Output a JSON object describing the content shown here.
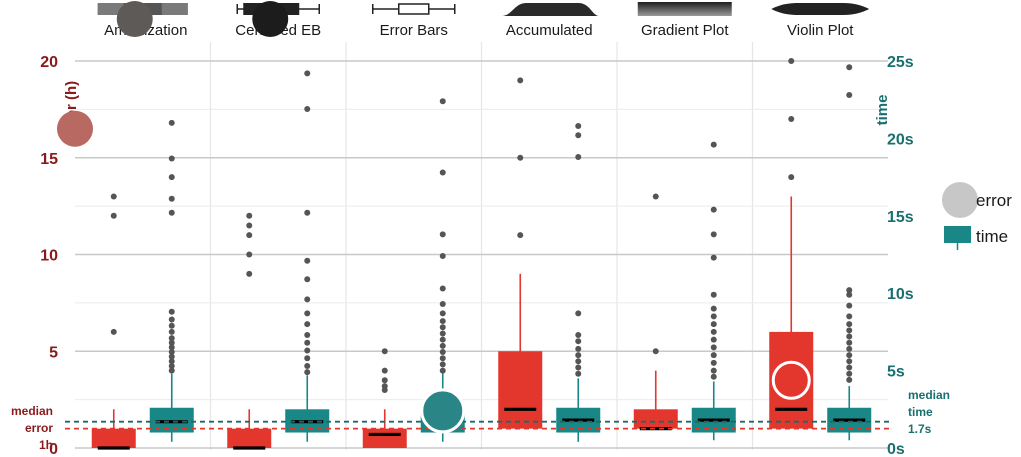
{
  "chart_data": {
    "type": "box",
    "categories": [
      "Amortization",
      "Centered EB",
      "Error Bars",
      "Accumulated",
      "Gradient Plot",
      "Violin Plot"
    ],
    "left_axis": {
      "label": "error (h)",
      "range": [
        0,
        20
      ],
      "ticks": [
        "0",
        "5",
        "10",
        "15",
        "20"
      ]
    },
    "right_axis": {
      "label": "time",
      "range": [
        0,
        25
      ],
      "ticks": [
        "0s",
        "5s",
        "10s",
        "15s",
        "20s",
        "25s"
      ]
    },
    "legend": {
      "position": "right",
      "items": [
        "error",
        "time"
      ]
    },
    "colors": {
      "error": "#e3362c",
      "time": "#1a8787",
      "left_axis": "#8b1a1a",
      "right_axis": "#1a7070",
      "grid": "#c8c8c8"
    },
    "reference_lines": [
      {
        "label_lines": [
          "median",
          "error",
          "1h"
        ],
        "axis": "left",
        "value": 1.0,
        "color": "#e3362c"
      },
      {
        "label_lines": [
          "median",
          "time",
          "1.7s"
        ],
        "axis": "right",
        "value": 1.7,
        "color": "#1a6a6a"
      }
    ],
    "series": [
      {
        "name": "error",
        "axis": "left",
        "boxes": [
          {
            "category": "Amortization",
            "median": 0,
            "q1": 0,
            "q3": 1,
            "whisker_low": 0,
            "whisker_high": 2,
            "outliers": [
              6,
              12,
              13
            ]
          },
          {
            "category": "Centered EB",
            "median": 0,
            "q1": 0,
            "q3": 1,
            "whisker_low": 0,
            "whisker_high": 2,
            "outliers": [
              9,
              10,
              11,
              11.5,
              12
            ]
          },
          {
            "category": "Error Bars",
            "median": 0.7,
            "q1": 0,
            "q3": 1,
            "whisker_low": 0,
            "whisker_high": 2,
            "outliers": [
              3,
              3.2,
              3.5,
              4,
              5
            ]
          },
          {
            "category": "Accumulated",
            "median": 2,
            "q1": 1,
            "q3": 5,
            "whisker_low": 1,
            "whisker_high": 9,
            "outliers": [
              11,
              15,
              19
            ]
          },
          {
            "category": "Gradient Plot",
            "median": 1,
            "q1": 1,
            "q3": 2,
            "whisker_low": 1,
            "whisker_high": 4,
            "outliers": [
              5,
              13
            ]
          },
          {
            "category": "Violin Plot",
            "median": 2,
            "q1": 1,
            "q3": 6,
            "whisker_low": 1,
            "whisker_high": 13,
            "outliers": [
              14,
              17,
              20
            ]
          }
        ]
      },
      {
        "name": "time",
        "axis": "right",
        "boxes": [
          {
            "category": "Amortization",
            "median": 1.7,
            "q1": 1.0,
            "q3": 2.6,
            "whisker_low": 0.4,
            "whisker_high": 4.8,
            "outliers": [
              5.0,
              5.3,
              5.6,
              5.9,
              6.2,
              6.5,
              6.8,
              7.1,
              7.5,
              7.9,
              8.3,
              8.8,
              15.2,
              16.1,
              17.5,
              18.7,
              21.0
            ]
          },
          {
            "category": "Centered EB",
            "median": 1.7,
            "q1": 1.0,
            "q3": 2.5,
            "whisker_low": 0.4,
            "whisker_high": 4.7,
            "outliers": [
              4.9,
              5.3,
              5.8,
              6.3,
              6.8,
              7.3,
              8.0,
              8.7,
              9.6,
              10.9,
              12.1,
              15.2,
              21.9,
              24.2
            ]
          },
          {
            "category": "Error Bars",
            "median": 1.7,
            "q1": 1.0,
            "q3": 2.6,
            "whisker_low": 0.4,
            "whisker_high": 4.9,
            "outliers": [
              5.0,
              5.4,
              5.8,
              6.2,
              6.6,
              7.0,
              7.4,
              7.8,
              8.2,
              8.7,
              9.3,
              10.3,
              12.4,
              13.8,
              17.8,
              22.4
            ]
          },
          {
            "category": "Accumulated",
            "median": 1.8,
            "q1": 1.0,
            "q3": 2.6,
            "whisker_low": 0.4,
            "whisker_high": 4.5,
            "outliers": [
              4.8,
              5.2,
              5.6,
              6.0,
              6.4,
              6.9,
              7.3,
              8.7,
              18.8,
              20.2,
              20.8
            ]
          },
          {
            "category": "Gradient Plot",
            "median": 1.8,
            "q1": 1.0,
            "q3": 2.6,
            "whisker_low": 0.5,
            "whisker_high": 4.3,
            "outliers": [
              4.6,
              5.0,
              5.5,
              6.0,
              6.5,
              7.0,
              7.5,
              8.0,
              8.5,
              9.0,
              9.9,
              12.3,
              13.8,
              15.4,
              19.6
            ]
          },
          {
            "category": "Violin Plot",
            "median": 1.8,
            "q1": 1.0,
            "q3": 2.6,
            "whisker_low": 0.5,
            "whisker_high": 4.0,
            "outliers": [
              4.4,
              4.8,
              5.2,
              5.6,
              6.0,
              6.4,
              6.8,
              7.2,
              7.6,
              8.0,
              8.5,
              9.2,
              9.9,
              10.2,
              22.8,
              24.6
            ]
          }
        ]
      }
    ],
    "markers": [
      {
        "category": "Amortization",
        "axis": "header",
        "style": "dark-gray-circle"
      },
      {
        "category": "Centered EB",
        "axis": "header",
        "style": "black-circle"
      },
      {
        "category": "Amortization",
        "axis": "left",
        "value": 16.5,
        "style": "red-circle"
      },
      {
        "category": "Error Bars",
        "axis": "right",
        "value": 2.4,
        "style": "teal-circle"
      },
      {
        "category": "Violin Plot",
        "axis": "left",
        "value": 3.5,
        "style": "ring-circle"
      }
    ]
  }
}
